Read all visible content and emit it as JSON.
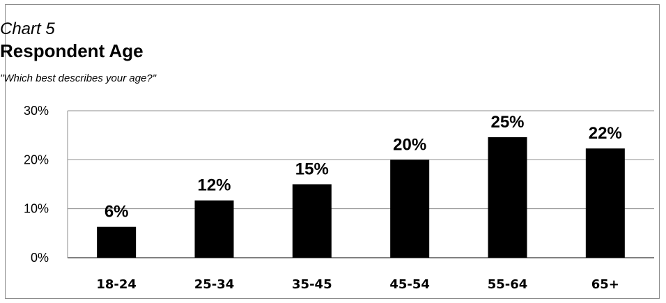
{
  "header": {
    "chart_number": "Chart 5",
    "title": "Respondent Age",
    "subtitle": "\"Which best describes your age?\""
  },
  "chart_data": {
    "type": "bar",
    "title": "Respondent Age",
    "subtitle": "\"Which best describes your age?\"",
    "categories": [
      "18-24",
      "25-34",
      "35-45",
      "45-54",
      "55-64",
      "65+"
    ],
    "values": [
      6.3,
      11.7,
      15.0,
      20.0,
      24.6,
      22.3
    ],
    "value_labels": [
      "6%",
      "12%",
      "15%",
      "20%",
      "25%",
      "22%"
    ],
    "ylim": [
      0,
      30
    ],
    "yticks": [
      0,
      10,
      20,
      30
    ],
    "ytick_labels": [
      "0%",
      "10%",
      "20%",
      "30%"
    ],
    "grid": true,
    "legend": "none",
    "bar_color": "#000000",
    "grid_color": "#8c8c8c"
  }
}
